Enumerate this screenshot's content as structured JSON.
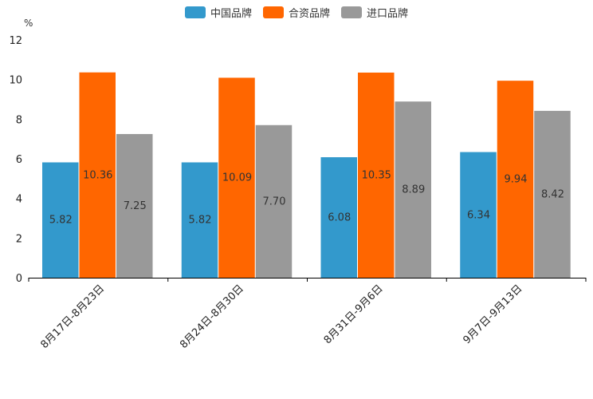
{
  "chart_data": {
    "type": "bar",
    "ylabel": "%",
    "ylim": [
      0,
      12
    ],
    "yticks": [
      0,
      2,
      4,
      6,
      8,
      10,
      12
    ],
    "categories": [
      "8月17日-8月23日",
      "8月24日-8月30日",
      "8月31日-9月6日",
      "9月7日-9月13日"
    ],
    "series": [
      {
        "name": "中国品牌",
        "color": "#3399cc",
        "values": [
          5.82,
          5.82,
          6.08,
          6.34
        ],
        "labels": [
          "5.82",
          "5.82",
          "6.08",
          "6.34"
        ]
      },
      {
        "name": "合资品牌",
        "color": "#ff6600",
        "values": [
          10.36,
          10.09,
          10.35,
          9.94
        ],
        "labels": [
          "10.36",
          "10.09",
          "10.35",
          "9.94"
        ]
      },
      {
        "name": "进口品牌",
        "color": "#999999",
        "values": [
          7.25,
          7.7,
          8.89,
          8.42
        ],
        "labels": [
          "7.25",
          "7.70",
          "8.89",
          "8.42"
        ]
      }
    ],
    "legend_position": "top-center",
    "grid": false
  }
}
